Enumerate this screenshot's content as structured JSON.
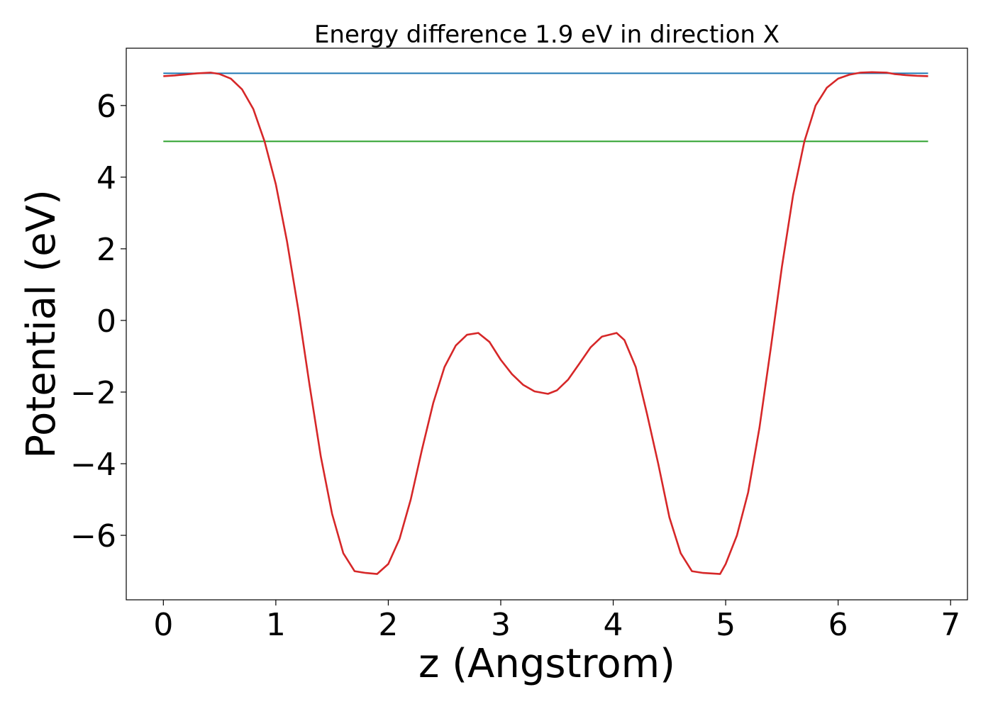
{
  "chart_data": {
    "type": "line",
    "title": "Energy difference 1.9 eV in direction X",
    "xlabel": "z (Angstrom)",
    "ylabel": "Potential (eV)",
    "xlim": [
      -0.33,
      7.15
    ],
    "ylim": [
      -7.8,
      7.6
    ],
    "xticks": [
      0,
      1,
      2,
      3,
      4,
      5,
      6,
      7
    ],
    "xtick_labels": [
      "0",
      "1",
      "2",
      "3",
      "4",
      "5",
      "6",
      "7"
    ],
    "yticks": [
      -6,
      -4,
      -2,
      0,
      2,
      4,
      6
    ],
    "ytick_labels": [
      "−6",
      "−4",
      "−2",
      "0",
      "2",
      "4",
      "6"
    ],
    "grid": false,
    "legend": "none",
    "series": [
      {
        "color": "#1f77b4",
        "x": [
          0,
          6.8
        ],
        "y": [
          6.9,
          6.9
        ]
      },
      {
        "color": "#2ca02c",
        "x": [
          0,
          6.8
        ],
        "y": [
          5.0,
          5.0
        ]
      },
      {
        "color": "#d62728",
        "x": [
          0,
          0.1,
          0.2,
          0.3,
          0.42,
          0.5,
          0.6,
          0.7,
          0.8,
          0.9,
          1.0,
          1.1,
          1.2,
          1.3,
          1.4,
          1.5,
          1.6,
          1.7,
          1.8,
          1.9,
          2.0,
          2.1,
          2.2,
          2.3,
          2.4,
          2.5,
          2.6,
          2.7,
          2.8,
          2.9,
          3.0,
          3.1,
          3.2,
          3.3,
          3.42,
          3.5,
          3.6,
          3.7,
          3.8,
          3.9,
          4.03,
          4.1,
          4.2,
          4.3,
          4.4,
          4.5,
          4.6,
          4.7,
          4.8,
          4.95,
          5.0,
          5.1,
          5.2,
          5.3,
          5.4,
          5.5,
          5.6,
          5.7,
          5.8,
          5.9,
          6.0,
          6.1,
          6.2,
          6.3,
          6.43,
          6.5,
          6.6,
          6.7,
          6.8
        ],
        "y": [
          6.82,
          6.84,
          6.87,
          6.9,
          6.92,
          6.88,
          6.75,
          6.45,
          5.9,
          5.0,
          3.8,
          2.2,
          0.3,
          -1.8,
          -3.8,
          -5.4,
          -6.5,
          -7.0,
          -7.05,
          -7.08,
          -6.8,
          -6.1,
          -5.0,
          -3.6,
          -2.3,
          -1.3,
          -0.7,
          -0.4,
          -0.35,
          -0.6,
          -1.1,
          -1.5,
          -1.8,
          -1.98,
          -2.05,
          -1.95,
          -1.65,
          -1.2,
          -0.75,
          -0.45,
          -0.35,
          -0.55,
          -1.3,
          -2.6,
          -4.0,
          -5.5,
          -6.5,
          -7.0,
          -7.05,
          -7.08,
          -6.8,
          -6.0,
          -4.8,
          -3.0,
          -0.8,
          1.5,
          3.5,
          5.0,
          6.0,
          6.5,
          6.75,
          6.86,
          6.92,
          6.93,
          6.92,
          6.88,
          6.85,
          6.83,
          6.82
        ]
      }
    ]
  }
}
